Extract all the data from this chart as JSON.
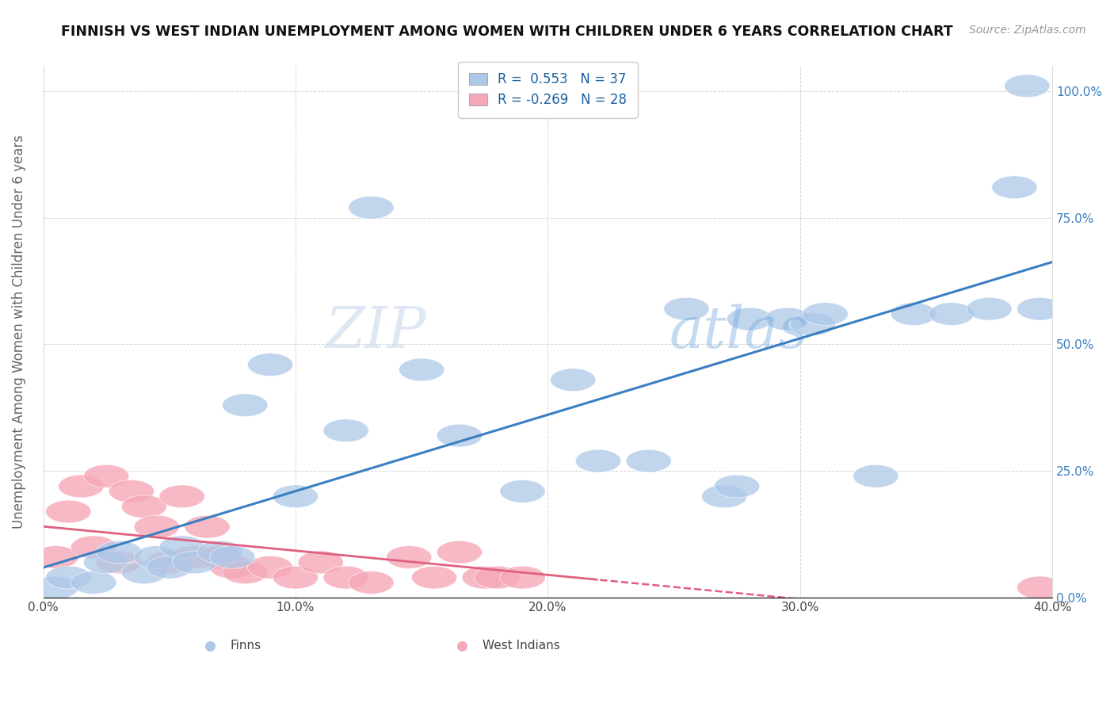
{
  "title": "FINNISH VS WEST INDIAN UNEMPLOYMENT AMONG WOMEN WITH CHILDREN UNDER 6 YEARS CORRELATION CHART",
  "source": "Source: ZipAtlas.com",
  "ylabel": "Unemployment Among Women with Children Under 6 years",
  "xlim": [
    0.0,
    0.4
  ],
  "ylim": [
    0.0,
    1.05
  ],
  "xtick_labels": [
    "0.0%",
    "10.0%",
    "20.0%",
    "30.0%",
    "40.0%"
  ],
  "xtick_vals": [
    0.0,
    0.1,
    0.2,
    0.3,
    0.4
  ],
  "ytick_labels": [
    "0.0%",
    "25.0%",
    "50.0%",
    "75.0%",
    "100.0%"
  ],
  "ytick_vals": [
    0.0,
    0.25,
    0.5,
    0.75,
    1.0
  ],
  "finns_R": 0.553,
  "finns_N": 37,
  "west_indians_R": -0.269,
  "west_indians_N": 28,
  "finns_color": "#adc8e8",
  "west_indians_color": "#f5a8b8",
  "finns_line_color": "#3a7fc1",
  "west_indians_line_color": "#e06080",
  "legend_box_color": "#f0f4fa",
  "legend_edge_color": "#cccccc",
  "finns_x": [
    0.005,
    0.01,
    0.02,
    0.025,
    0.03,
    0.04,
    0.045,
    0.05,
    0.055,
    0.06,
    0.07,
    0.075,
    0.08,
    0.09,
    0.1,
    0.12,
    0.13,
    0.15,
    0.165,
    0.19,
    0.21,
    0.22,
    0.24,
    0.255,
    0.27,
    0.275,
    0.28,
    0.295,
    0.305,
    0.31,
    0.33,
    0.345,
    0.36,
    0.375,
    0.385,
    0.395,
    0.39
  ],
  "finns_y": [
    0.02,
    0.04,
    0.03,
    0.07,
    0.09,
    0.05,
    0.08,
    0.06,
    0.1,
    0.07,
    0.09,
    0.08,
    0.38,
    0.46,
    0.2,
    0.33,
    0.77,
    0.45,
    0.32,
    0.21,
    0.43,
    0.27,
    0.27,
    0.57,
    0.2,
    0.22,
    0.55,
    0.55,
    0.54,
    0.56,
    0.24,
    0.56,
    0.56,
    0.57,
    0.81,
    0.57,
    1.01
  ],
  "wi_x": [
    0.005,
    0.01,
    0.015,
    0.02,
    0.025,
    0.03,
    0.035,
    0.04,
    0.045,
    0.05,
    0.055,
    0.06,
    0.065,
    0.07,
    0.075,
    0.08,
    0.09,
    0.1,
    0.11,
    0.12,
    0.13,
    0.145,
    0.155,
    0.165,
    0.175,
    0.18,
    0.19,
    0.395
  ],
  "wi_y": [
    0.08,
    0.17,
    0.22,
    0.1,
    0.24,
    0.07,
    0.21,
    0.18,
    0.14,
    0.07,
    0.2,
    0.08,
    0.14,
    0.08,
    0.06,
    0.05,
    0.06,
    0.04,
    0.07,
    0.04,
    0.03,
    0.08,
    0.04,
    0.09,
    0.04,
    0.04,
    0.04,
    0.02
  ]
}
